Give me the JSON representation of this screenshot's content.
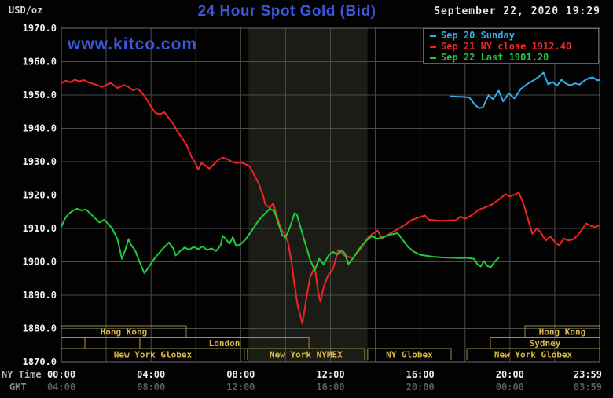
{
  "header": {
    "units_label": "USD/oz",
    "title": "24 Hour Spot Gold (Bid)",
    "datetime": "September 22, 2020 19:29",
    "watermark": "www.kitco.com"
  },
  "legend": {
    "items": [
      {
        "label": "Sep 20 Sunday",
        "color": "#2fb0e8"
      },
      {
        "label": "Sep 21 NY close 1912.40",
        "color": "#f02424"
      },
      {
        "label": "Sep 22 Last 1901.20",
        "color": "#1ecb3a"
      }
    ]
  },
  "colors": {
    "grid": "#4b4b4b",
    "border": "#6b6b6b",
    "band": "#1c1c16",
    "session_border": "#9d8c3a",
    "session_text": "#d9b844",
    "tick_bright": "#f0f0f0",
    "tick_dim": "#5e5e5e",
    "axis_label": "#b4b4b4",
    "gmt_label": "#8a8a8a"
  },
  "x_axis": {
    "ny_label": "NY Time",
    "gmt_label": "GMT",
    "tick_hours": [
      0,
      4,
      8,
      12,
      16,
      20,
      24
    ],
    "ny_ticks": [
      "00:00",
      "04:00",
      "08:00",
      "12:00",
      "16:00",
      "20:00",
      "23:59"
    ],
    "gmt_ticks": [
      "04:00",
      "08:00",
      "12:00",
      "16:00",
      "20:00",
      "00:00",
      "03:59"
    ]
  },
  "y_axis": {
    "min": 1870,
    "max": 1970,
    "tick_step": 10
  },
  "sessions": {
    "rows": [
      [
        {
          "label": "Hong Kong",
          "h1": 0,
          "h2": 5.57
        },
        {
          "label": "Hong Kong",
          "h1": 20.67,
          "h2": 24
        }
      ],
      [
        {
          "label": "",
          "h1": 0,
          "h2": 1.05
        },
        {
          "label": "",
          "h1": 1.05,
          "h2": 3.5
        },
        {
          "label": "London",
          "h1": 3.5,
          "h2": 11.04
        },
        {
          "label": "Sydney",
          "h1": 19.13,
          "h2": 24
        }
      ],
      [
        {
          "label": "New York Globex",
          "h1": 0,
          "h2": 8.16
        },
        {
          "label": "New York NYMEX",
          "h1": 8.3,
          "h2": 13.52
        },
        {
          "label": "NY Globex",
          "h1": 13.66,
          "h2": 17.38
        },
        {
          "label": "New York Globex",
          "h1": 18.08,
          "h2": 24
        }
      ]
    ]
  },
  "chart_data": {
    "type": "line",
    "title": "24 Hour Spot Gold (Bid)",
    "ylabel": "USD/oz",
    "ylim": [
      1870,
      1970
    ],
    "xlim_hours": [
      0,
      24
    ],
    "grid": {
      "horizontal_step": 10,
      "vertical_step_hours": 2
    },
    "legend_position": "top-right",
    "nymex_band_hours": [
      8.35,
      13.65
    ],
    "ny_close": 1912.4,
    "last": 1901.2,
    "series": [
      {
        "name": "Sep 20 Sunday",
        "color": "#2fb0e8",
        "points": [
          [
            17.35,
            1949.6
          ],
          [
            17.7,
            1949.5
          ],
          [
            18.0,
            1949.4
          ],
          [
            18.2,
            1949.2
          ],
          [
            18.45,
            1947.0
          ],
          [
            18.65,
            1946.0
          ],
          [
            18.8,
            1946.4
          ],
          [
            19.05,
            1950.0
          ],
          [
            19.25,
            1948.7
          ],
          [
            19.5,
            1951.3
          ],
          [
            19.7,
            1948.1
          ],
          [
            19.95,
            1950.5
          ],
          [
            20.2,
            1949.0
          ],
          [
            20.5,
            1951.9
          ],
          [
            20.8,
            1953.4
          ],
          [
            21.1,
            1954.6
          ],
          [
            21.3,
            1955.5
          ],
          [
            21.5,
            1956.7
          ],
          [
            21.7,
            1953.2
          ],
          [
            21.9,
            1953.9
          ],
          [
            22.1,
            1952.8
          ],
          [
            22.3,
            1954.6
          ],
          [
            22.5,
            1953.4
          ],
          [
            22.7,
            1952.9
          ],
          [
            22.9,
            1953.5
          ],
          [
            23.1,
            1953.1
          ],
          [
            23.3,
            1954.2
          ],
          [
            23.5,
            1955.0
          ],
          [
            23.7,
            1955.3
          ],
          [
            23.9,
            1954.4
          ],
          [
            24,
            1954.5
          ]
        ]
      },
      {
        "name": "Sep 21 NY close 1912.40",
        "color": "#f02424",
        "points": [
          [
            0,
            1953.5
          ],
          [
            0.2,
            1954.3
          ],
          [
            0.4,
            1953.8
          ],
          [
            0.6,
            1954.6
          ],
          [
            0.8,
            1954.1
          ],
          [
            1.0,
            1954.5
          ],
          [
            1.2,
            1953.8
          ],
          [
            1.5,
            1953.2
          ],
          [
            1.8,
            1952.4
          ],
          [
            2.0,
            1953.0
          ],
          [
            2.2,
            1953.6
          ],
          [
            2.5,
            1952.1
          ],
          [
            2.8,
            1953.0
          ],
          [
            3.0,
            1952.4
          ],
          [
            3.2,
            1951.4
          ],
          [
            3.4,
            1951.9
          ],
          [
            3.6,
            1950.6
          ],
          [
            3.8,
            1948.8
          ],
          [
            4.0,
            1946.5
          ],
          [
            4.2,
            1944.6
          ],
          [
            4.4,
            1944.2
          ],
          [
            4.6,
            1944.8
          ],
          [
            4.8,
            1943.0
          ],
          [
            5.0,
            1941.3
          ],
          [
            5.2,
            1938.8
          ],
          [
            5.4,
            1937.0
          ],
          [
            5.6,
            1934.8
          ],
          [
            5.8,
            1931.5
          ],
          [
            6.0,
            1929.3
          ],
          [
            6.1,
            1927.6
          ],
          [
            6.25,
            1929.6
          ],
          [
            6.4,
            1929.0
          ],
          [
            6.6,
            1927.9
          ],
          [
            6.8,
            1929.2
          ],
          [
            7.0,
            1930.6
          ],
          [
            7.2,
            1931.2
          ],
          [
            7.4,
            1930.8
          ],
          [
            7.6,
            1930.0
          ],
          [
            7.8,
            1929.6
          ],
          [
            8.0,
            1929.8
          ],
          [
            8.2,
            1929.3
          ],
          [
            8.4,
            1928.6
          ],
          [
            8.6,
            1926.0
          ],
          [
            8.8,
            1923.5
          ],
          [
            9.0,
            1919.8
          ],
          [
            9.1,
            1917.2
          ],
          [
            9.3,
            1916.1
          ],
          [
            9.45,
            1917.6
          ],
          [
            9.6,
            1914.0
          ],
          [
            9.8,
            1909.8
          ],
          [
            9.95,
            1908.4
          ],
          [
            10.1,
            1906.0
          ],
          [
            10.25,
            1900.5
          ],
          [
            10.4,
            1893.0
          ],
          [
            10.55,
            1886.5
          ],
          [
            10.75,
            1881.5
          ],
          [
            10.95,
            1890.0
          ],
          [
            11.1,
            1895.5
          ],
          [
            11.3,
            1898.5
          ],
          [
            11.45,
            1891.0
          ],
          [
            11.55,
            1888.0
          ],
          [
            11.7,
            1892.5
          ],
          [
            11.9,
            1896.0
          ],
          [
            12.1,
            1897.7
          ],
          [
            12.35,
            1903.6
          ],
          [
            12.6,
            1902.0
          ],
          [
            12.8,
            1901.5
          ],
          [
            13.0,
            1901.2
          ],
          [
            13.3,
            1903.5
          ],
          [
            13.7,
            1907.5
          ],
          [
            14.1,
            1909.4
          ],
          [
            14.3,
            1907.0
          ],
          [
            14.6,
            1908.3
          ],
          [
            15.0,
            1909.8
          ],
          [
            15.3,
            1911.0
          ],
          [
            15.6,
            1912.5
          ],
          [
            15.9,
            1913.2
          ],
          [
            16.2,
            1913.9
          ],
          [
            16.4,
            1912.6
          ],
          [
            16.7,
            1912.4
          ],
          [
            17.0,
            1912.3
          ],
          [
            17.3,
            1912.4
          ],
          [
            17.6,
            1912.5
          ],
          [
            17.8,
            1913.6
          ],
          [
            18.0,
            1912.9
          ],
          [
            18.3,
            1914.0
          ],
          [
            18.6,
            1915.6
          ],
          [
            18.9,
            1916.3
          ],
          [
            19.2,
            1917.2
          ],
          [
            19.5,
            1918.6
          ],
          [
            19.8,
            1920.3
          ],
          [
            20.0,
            1919.6
          ],
          [
            20.2,
            1920.1
          ],
          [
            20.4,
            1920.7
          ],
          [
            20.6,
            1917.5
          ],
          [
            20.8,
            1912.9
          ],
          [
            21.0,
            1908.4
          ],
          [
            21.2,
            1910.0
          ],
          [
            21.35,
            1909.0
          ],
          [
            21.6,
            1906.4
          ],
          [
            21.8,
            1907.6
          ],
          [
            22.0,
            1906.0
          ],
          [
            22.2,
            1904.9
          ],
          [
            22.4,
            1907.0
          ],
          [
            22.6,
            1906.4
          ],
          [
            22.8,
            1906.7
          ],
          [
            23.0,
            1907.8
          ],
          [
            23.2,
            1909.5
          ],
          [
            23.4,
            1911.5
          ],
          [
            23.6,
            1910.8
          ],
          [
            23.8,
            1910.4
          ],
          [
            24,
            1911.0
          ]
        ]
      },
      {
        "name": "Sep 22 Last 1901.20",
        "color": "#1ecb3a",
        "points": [
          [
            0,
            1910.5
          ],
          [
            0.15,
            1912.8
          ],
          [
            0.3,
            1914.2
          ],
          [
            0.5,
            1915.3
          ],
          [
            0.7,
            1915.9
          ],
          [
            0.9,
            1915.4
          ],
          [
            1.1,
            1915.7
          ],
          [
            1.3,
            1914.4
          ],
          [
            1.5,
            1913.1
          ],
          [
            1.7,
            1911.8
          ],
          [
            1.9,
            1912.6
          ],
          [
            2.1,
            1911.4
          ],
          [
            2.3,
            1909.6
          ],
          [
            2.5,
            1906.8
          ],
          [
            2.7,
            1900.9
          ],
          [
            2.85,
            1903.5
          ],
          [
            3.0,
            1906.8
          ],
          [
            3.1,
            1905.2
          ],
          [
            3.3,
            1903.3
          ],
          [
            3.5,
            1899.8
          ],
          [
            3.7,
            1896.6
          ],
          [
            3.85,
            1897.9
          ],
          [
            4.0,
            1899.5
          ],
          [
            4.2,
            1901.4
          ],
          [
            4.5,
            1903.7
          ],
          [
            4.8,
            1905.8
          ],
          [
            5.0,
            1903.9
          ],
          [
            5.1,
            1901.9
          ],
          [
            5.3,
            1903.2
          ],
          [
            5.5,
            1904.3
          ],
          [
            5.7,
            1903.6
          ],
          [
            5.9,
            1904.5
          ],
          [
            6.1,
            1903.8
          ],
          [
            6.3,
            1904.6
          ],
          [
            6.5,
            1903.5
          ],
          [
            6.7,
            1904.0
          ],
          [
            6.9,
            1903.2
          ],
          [
            7.1,
            1904.9
          ],
          [
            7.2,
            1907.8
          ],
          [
            7.35,
            1906.7
          ],
          [
            7.5,
            1905.4
          ],
          [
            7.65,
            1907.4
          ],
          [
            7.8,
            1904.7
          ],
          [
            8.0,
            1905.3
          ],
          [
            8.2,
            1906.6
          ],
          [
            8.5,
            1909.4
          ],
          [
            8.8,
            1912.5
          ],
          [
            9.1,
            1914.6
          ],
          [
            9.3,
            1915.9
          ],
          [
            9.5,
            1915.2
          ],
          [
            9.7,
            1911.0
          ],
          [
            9.85,
            1908.0
          ],
          [
            10.0,
            1907.3
          ],
          [
            10.2,
            1910.5
          ],
          [
            10.4,
            1914.6
          ],
          [
            10.5,
            1914.2
          ],
          [
            10.7,
            1909.5
          ],
          [
            10.9,
            1905.0
          ],
          [
            11.1,
            1900.5
          ],
          [
            11.3,
            1897.5
          ],
          [
            11.5,
            1900.9
          ],
          [
            11.7,
            1899.2
          ],
          [
            11.9,
            1901.8
          ],
          [
            12.1,
            1903.0
          ],
          [
            12.3,
            1902.2
          ],
          [
            12.5,
            1903.4
          ],
          [
            12.65,
            1902.4
          ],
          [
            12.8,
            1899.3
          ],
          [
            13.0,
            1901.0
          ],
          [
            13.3,
            1904.0
          ],
          [
            13.6,
            1906.4
          ],
          [
            13.85,
            1907.7
          ],
          [
            14.1,
            1906.9
          ],
          [
            14.4,
            1907.6
          ],
          [
            14.7,
            1908.2
          ],
          [
            15.0,
            1908.6
          ],
          [
            15.2,
            1906.8
          ],
          [
            15.45,
            1904.5
          ],
          [
            15.7,
            1903.1
          ],
          [
            16.0,
            1902.1
          ],
          [
            16.3,
            1901.8
          ],
          [
            16.6,
            1901.5
          ],
          [
            17.0,
            1901.3
          ],
          [
            17.4,
            1901.2
          ],
          [
            17.8,
            1901.1
          ],
          [
            18.1,
            1901.2
          ],
          [
            18.4,
            1900.9
          ],
          [
            18.55,
            1899.3
          ],
          [
            18.7,
            1898.6
          ],
          [
            18.85,
            1900.2
          ],
          [
            19.0,
            1898.7
          ],
          [
            19.15,
            1898.4
          ],
          [
            19.3,
            1899.9
          ],
          [
            19.5,
            1901.2
          ]
        ]
      }
    ]
  }
}
